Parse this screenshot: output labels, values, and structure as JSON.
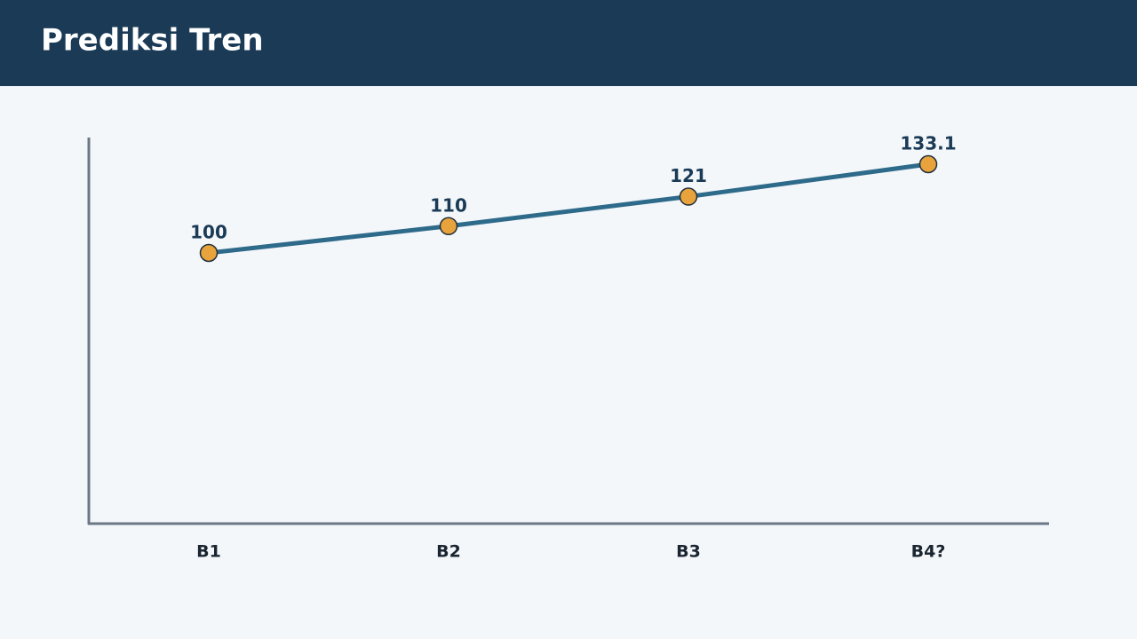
{
  "chart_data": {
    "type": "line",
    "title": "Prediksi Tren",
    "categories": [
      "B1",
      "B2",
      "B3",
      "B4?"
    ],
    "values": [
      100,
      110,
      121,
      133.1
    ],
    "color": "#2e6a8a",
    "marker_color": "#e8a33c"
  }
}
